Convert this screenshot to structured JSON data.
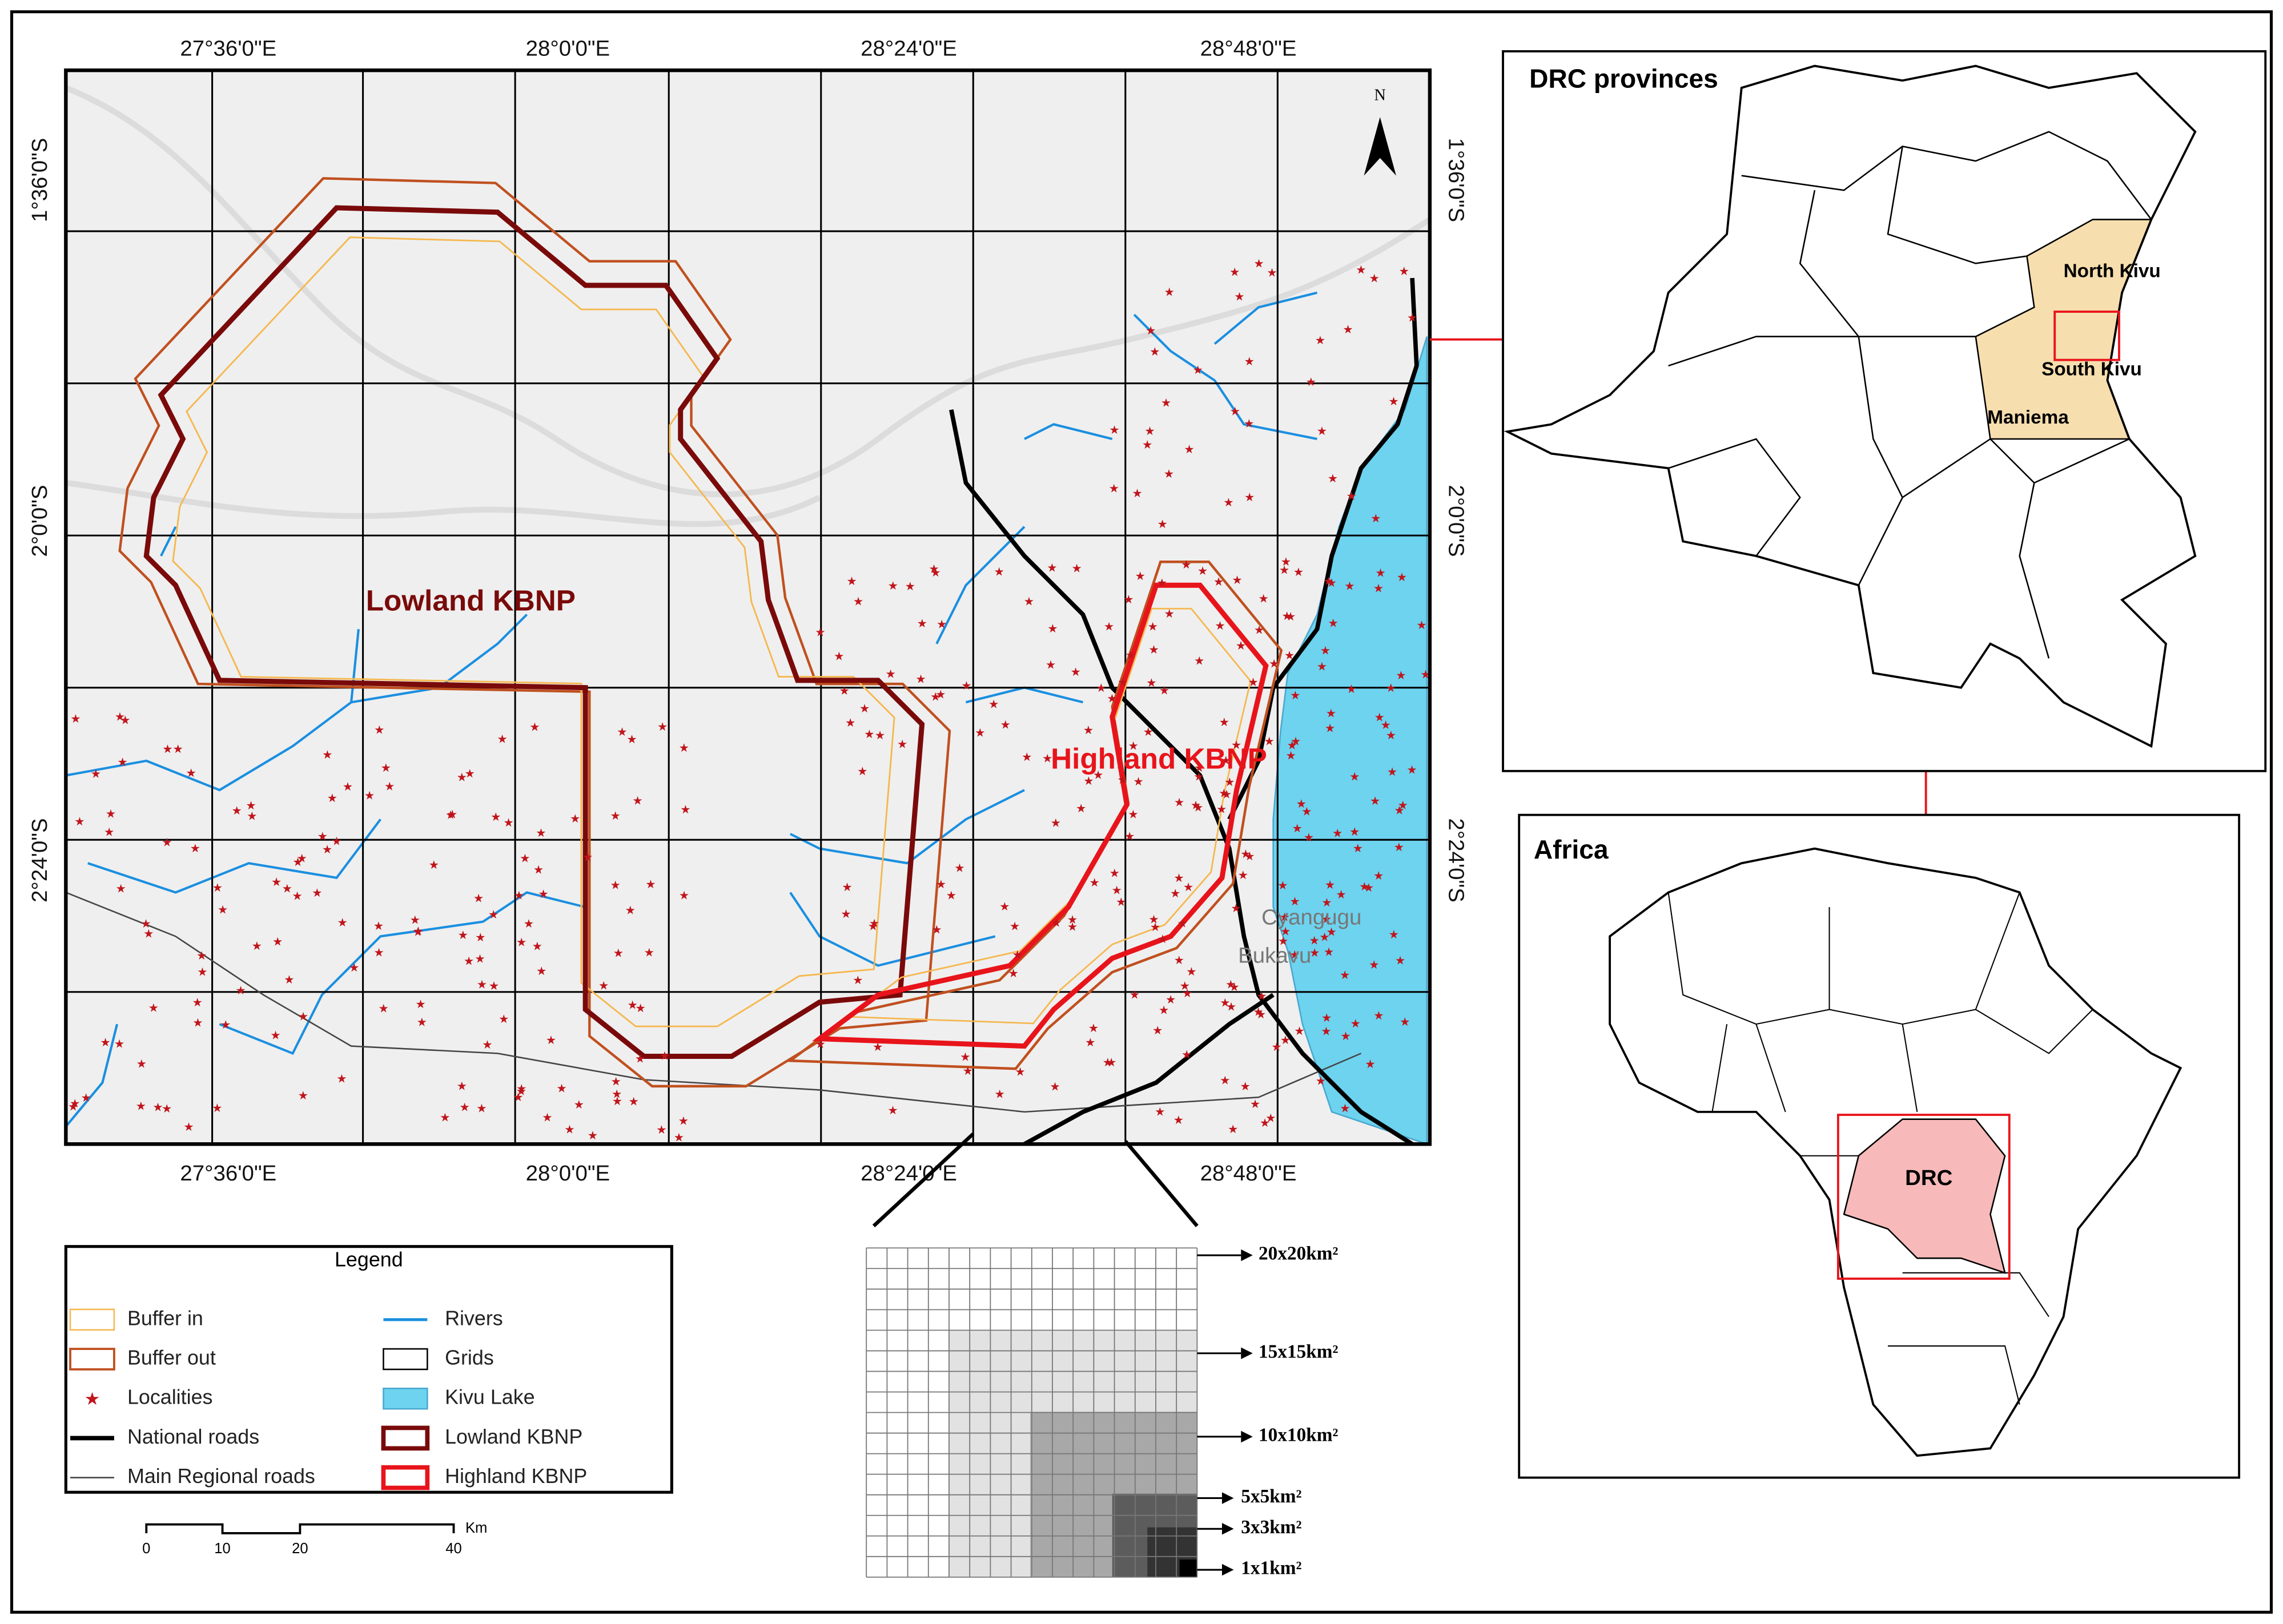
{
  "main_map": {
    "top_lon_labels": [
      "27°36'0\"E",
      "28°0'0\"E",
      "28°24'0\"E",
      "28°48'0\"E"
    ],
    "bottom_lon_labels": [
      "27°36'0\"E",
      "28°0'0\"E",
      "28°24'0\"E",
      "28°48'0\"E"
    ],
    "left_lat_labels": [
      "1°36'0\"S",
      "2°0'0\"S",
      "2°24'0\"S"
    ],
    "right_lat_labels": [
      "1°36'0\"S",
      "2°0'0\"S",
      "2°24'0\"S"
    ],
    "north": "N",
    "lowland_label": "Lowland KBNP",
    "highland_label": "Highland KBNP",
    "town_1": "Cyangugu",
    "town_2": "Bukavu"
  },
  "legend": {
    "title": "Legend",
    "items": [
      "Buffer in",
      "Buffer out",
      "Localities",
      "National roads",
      "Main Regional roads",
      "Rivers",
      "Grids",
      "Kivu Lake",
      "Lowland KBNP",
      "Highland KBNP"
    ]
  },
  "scale_bar": {
    "ticks": [
      "0",
      "10",
      "20",
      "40"
    ],
    "unit": "Km"
  },
  "grid_sizes": [
    "20x20km²",
    "15x15km²",
    "10x10km²",
    "5x5km²",
    "3x3km²",
    "1x1km²"
  ],
  "drc_inset": {
    "title": "DRC provinces",
    "labels": [
      "North Kivu",
      "South Kivu",
      "Maniema"
    ]
  },
  "africa_inset": {
    "title": "Africa",
    "label": "DRC"
  }
}
